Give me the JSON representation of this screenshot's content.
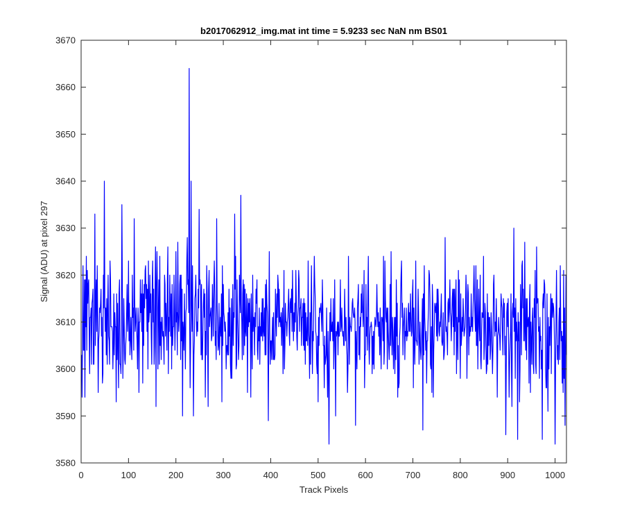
{
  "figure": {
    "background": "#ffffff"
  },
  "chart_data": {
    "type": "line",
    "title": "b2017062912_img.mat int time = 5.9233 sec  NaN nm BS01",
    "xlabel": "Track Pixels",
    "ylabel": "Signal (ADU) at pixel 297",
    "xlim": [
      0,
      1024
    ],
    "ylim": [
      3580,
      3670
    ],
    "xticks": [
      0,
      100,
      200,
      300,
      400,
      500,
      600,
      700,
      800,
      900,
      1000
    ],
    "yticks": [
      3580,
      3590,
      3600,
      3610,
      3620,
      3630,
      3640,
      3650,
      3660,
      3670
    ],
    "grid": false,
    "legend": "none",
    "line_color": "#0000ff",
    "n_points": 1024,
    "baseline": 3609,
    "noise_amplitude": 7,
    "highlighted_points": [
      {
        "x": 3,
        "y": 3622
      },
      {
        "x": 7,
        "y": 3594
      },
      {
        "x": 10,
        "y": 3624
      },
      {
        "x": 28,
        "y": 3633
      },
      {
        "x": 35,
        "y": 3595
      },
      {
        "x": 48,
        "y": 3640
      },
      {
        "x": 73,
        "y": 3593
      },
      {
        "x": 85,
        "y": 3635
      },
      {
        "x": 99,
        "y": 3623
      },
      {
        "x": 111,
        "y": 3632
      },
      {
        "x": 150,
        "y": 3623
      },
      {
        "x": 157,
        "y": 3592
      },
      {
        "x": 182,
        "y": 3626
      },
      {
        "x": 199,
        "y": 3625
      },
      {
        "x": 213,
        "y": 3590
      },
      {
        "x": 223,
        "y": 3628
      },
      {
        "x": 227,
        "y": 3664
      },
      {
        "x": 229,
        "y": 3596
      },
      {
        "x": 231,
        "y": 3640
      },
      {
        "x": 236,
        "y": 3590
      },
      {
        "x": 248,
        "y": 3634
      },
      {
        "x": 267,
        "y": 3592
      },
      {
        "x": 285,
        "y": 3632
      },
      {
        "x": 323,
        "y": 3633
      },
      {
        "x": 336,
        "y": 3637
      },
      {
        "x": 350,
        "y": 3595
      },
      {
        "x": 394,
        "y": 3589
      },
      {
        "x": 452,
        "y": 3621
      },
      {
        "x": 478,
        "y": 3623
      },
      {
        "x": 522,
        "y": 3584
      },
      {
        "x": 536,
        "y": 3590
      },
      {
        "x": 563,
        "y": 3624
      },
      {
        "x": 578,
        "y": 3588
      },
      {
        "x": 705,
        "y": 3623
      },
      {
        "x": 720,
        "y": 3587
      },
      {
        "x": 767,
        "y": 3628
      },
      {
        "x": 832,
        "y": 3622
      },
      {
        "x": 895,
        "y": 3586
      },
      {
        "x": 912,
        "y": 3630
      },
      {
        "x": 920,
        "y": 3585
      },
      {
        "x": 935,
        "y": 3627
      },
      {
        "x": 960,
        "y": 3626
      },
      {
        "x": 972,
        "y": 3585
      },
      {
        "x": 999,
        "y": 3584
      },
      {
        "x": 1010,
        "y": 3622
      },
      {
        "x": 1020,
        "y": 3588
      }
    ]
  }
}
